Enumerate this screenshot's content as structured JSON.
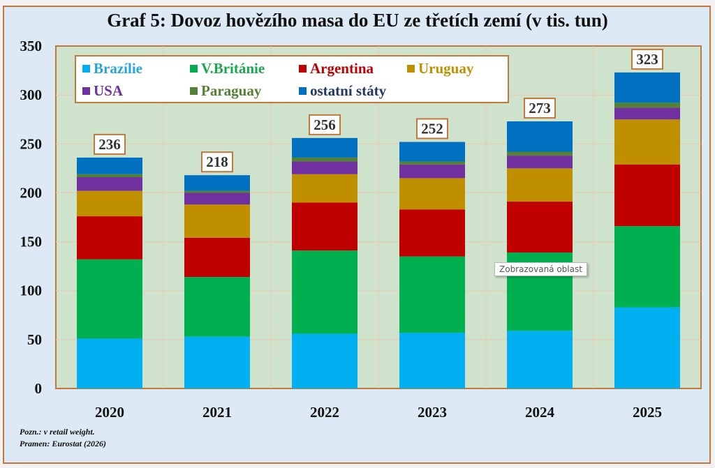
{
  "chart_data": {
    "type": "bar",
    "stacked": true,
    "title": "Graf 5: Dovoz hovězího masa do EU ze třetích zemí (v tis. tun)",
    "xlabel": "",
    "ylabel": "",
    "ylim": [
      0,
      350
    ],
    "yticks": [
      0,
      50,
      100,
      150,
      200,
      250,
      300,
      350
    ],
    "grid": true,
    "legend_position": "top-left",
    "categories": [
      "2020",
      "2021",
      "2022",
      "2023",
      "2024",
      "2025"
    ],
    "totals": [
      236,
      218,
      256,
      252,
      273,
      323
    ],
    "series": [
      {
        "name": "Brazílie",
        "color": "#00b0f0",
        "text_color": "#29a3dc",
        "values": [
          51,
          53,
          56,
          57,
          59,
          83
        ]
      },
      {
        "name": "V.Británie",
        "color": "#00b050",
        "text_color": "#1aa84e",
        "values": [
          81,
          61,
          85,
          78,
          80,
          83
        ]
      },
      {
        "name": "Argentina",
        "color": "#c00000",
        "text_color": "#c00000",
        "values": [
          44,
          40,
          49,
          48,
          52,
          63
        ]
      },
      {
        "name": "Uruguay",
        "color": "#bf8f00",
        "text_color": "#bf9000",
        "values": [
          26,
          34,
          29,
          32,
          34,
          46
        ]
      },
      {
        "name": "USA",
        "color": "#7030a0",
        "text_color": "#7030a0",
        "values": [
          14,
          12,
          13,
          14,
          13,
          12
        ]
      },
      {
        "name": "Paraguay",
        "color": "#548235",
        "text_color": "#548235",
        "values": [
          3,
          2,
          4,
          3,
          4,
          5
        ]
      },
      {
        "name": "ostatní státy",
        "color": "#0070c0",
        "text_color": "#1f3864",
        "values": [
          17,
          16,
          20,
          20,
          31,
          31
        ]
      }
    ]
  },
  "notes": {
    "line1": "Pozn.: v retail weight.",
    "line2": "Pramen: Eurostat (2026)"
  },
  "tooltip": "Zobrazovaná oblast"
}
